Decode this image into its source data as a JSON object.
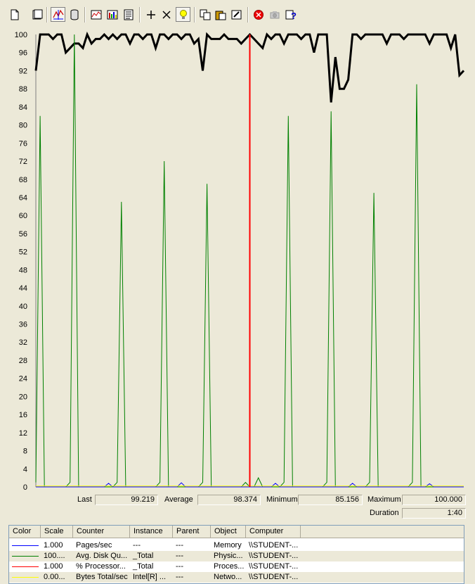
{
  "toolbar": {
    "buttons": [
      {
        "name": "new-counter-set-icon"
      },
      {
        "name": "clear-display-icon"
      },
      {
        "name": "view-current-activity-icon"
      },
      {
        "name": "view-log-data-icon"
      },
      {
        "name": "view-graph-icon"
      },
      {
        "name": "view-histogram-icon"
      },
      {
        "name": "view-report-icon"
      },
      {
        "name": "add-icon"
      },
      {
        "name": "delete-icon"
      },
      {
        "name": "highlight-icon"
      },
      {
        "name": "copy-properties-icon"
      },
      {
        "name": "paste-counter-list-icon"
      },
      {
        "name": "properties-icon"
      },
      {
        "name": "freeze-display-icon"
      },
      {
        "name": "update-data-icon"
      },
      {
        "name": "help-icon"
      }
    ]
  },
  "chart_data": {
    "type": "line",
    "ylim": [
      0,
      100
    ],
    "yticks": [
      "100",
      "96",
      "92",
      "88",
      "84",
      "80",
      "76",
      "72",
      "68",
      "64",
      "60",
      "56",
      "52",
      "48",
      "44",
      "40",
      "36",
      "32",
      "28",
      "24",
      "20",
      "16",
      "12",
      "8",
      "4",
      "0"
    ],
    "x": [
      0,
      1,
      2,
      3,
      4,
      5,
      6,
      7,
      8,
      9,
      10,
      11,
      12,
      13,
      14,
      15,
      16,
      17,
      18,
      19,
      20,
      21,
      22,
      23,
      24,
      25,
      26,
      27,
      28,
      29,
      30,
      31,
      32,
      33,
      34,
      35,
      36,
      37,
      38,
      39,
      40,
      41,
      42,
      43,
      44,
      45,
      46,
      47,
      48,
      49,
      50,
      51,
      52,
      53,
      54,
      55,
      56,
      57,
      58,
      59,
      60,
      61,
      62,
      63,
      64,
      65,
      66,
      67,
      68,
      69,
      70,
      71,
      72,
      73,
      74,
      75,
      76,
      77,
      78,
      79,
      80,
      81,
      82,
      83,
      84,
      85,
      86,
      87,
      88,
      89,
      90,
      91,
      92,
      93,
      94,
      95,
      96,
      97,
      98,
      99,
      100
    ],
    "current_x": 50,
    "series": [
      {
        "color": "#000000",
        "width": 3,
        "values": [
          92,
          100,
          100,
          100,
          99,
          100,
          100,
          96,
          97,
          98,
          98,
          97,
          100,
          98,
          99,
          99,
          100,
          99,
          100,
          99,
          100,
          100,
          98,
          100,
          100,
          99,
          100,
          100,
          97,
          100,
          100,
          99,
          100,
          100,
          99,
          100,
          100,
          98,
          99,
          92,
          100,
          99,
          99,
          99,
          100,
          99,
          99,
          99,
          98,
          99,
          100,
          99,
          98,
          97,
          100,
          99,
          100,
          100,
          98,
          100,
          100,
          100,
          99,
          100,
          100,
          96,
          100,
          100,
          100,
          85,
          95,
          88,
          88,
          90,
          100,
          100,
          99,
          100,
          100,
          100,
          100,
          100,
          98,
          100,
          100,
          100,
          99,
          100,
          100,
          100,
          100,
          100,
          98,
          100,
          100,
          100,
          100,
          97,
          100,
          91,
          92
        ]
      },
      {
        "color": "#008000",
        "width": 1,
        "values": [
          1,
          82,
          0,
          0,
          0,
          0,
          0,
          0,
          1,
          100,
          0,
          0,
          0,
          0,
          0,
          0,
          0,
          0,
          0,
          1,
          63,
          0,
          0,
          0,
          0,
          0,
          0,
          0,
          0,
          1,
          72,
          0,
          0,
          0,
          0,
          0,
          0,
          0,
          0,
          1,
          67,
          0,
          0,
          0,
          0,
          0,
          0,
          0,
          0,
          1,
          0,
          0,
          2,
          0,
          0,
          0,
          0,
          0,
          1,
          82,
          0,
          0,
          0,
          0,
          0,
          0,
          0,
          0,
          1,
          83,
          0,
          0,
          0,
          0,
          0,
          0,
          0,
          0,
          1,
          65,
          0,
          0,
          0,
          0,
          0,
          0,
          0,
          0,
          1,
          89,
          0,
          0,
          0,
          0,
          0,
          0,
          0,
          0,
          0,
          0,
          0
        ]
      },
      {
        "color": "#0000ff",
        "width": 1,
        "values": [
          0,
          0,
          0,
          0,
          0,
          0,
          0,
          0,
          0,
          0,
          0,
          0,
          0,
          0,
          0,
          0,
          0,
          0.8,
          0,
          0,
          0,
          0,
          0,
          0,
          0,
          0,
          0,
          0,
          0,
          0,
          0,
          0,
          0,
          0,
          0.9,
          0,
          0,
          0,
          0,
          0,
          0,
          0,
          0,
          0,
          0,
          0,
          0,
          0,
          0,
          0,
          0,
          0,
          0,
          0,
          0,
          0,
          0.8,
          0,
          0,
          0,
          0,
          0,
          0,
          0,
          0,
          0,
          0,
          0,
          0,
          0,
          0,
          0,
          0,
          0,
          0.8,
          0,
          0,
          0,
          0,
          0,
          0,
          0,
          0,
          0,
          0,
          0,
          0,
          0,
          0,
          0,
          0,
          0,
          0.7,
          0,
          0,
          0,
          0,
          0,
          0,
          0,
          0
        ]
      },
      {
        "color": "#ffff00",
        "width": 1,
        "values": [
          0.2,
          0.2,
          0.2,
          0.2,
          0.2,
          0.2,
          0.2,
          0.2,
          0.2,
          0.2,
          0.2,
          0.2,
          0.2,
          0.2,
          0.2,
          0.2,
          0.2,
          0.2,
          0.2,
          0.2,
          0.2,
          0.2,
          0.2,
          0.2,
          0.2,
          0.2,
          0.2,
          0.2,
          0.2,
          0.2,
          0.2,
          0.2,
          0.2,
          0.2,
          0.2,
          0.2,
          0.2,
          0.2,
          0.2,
          0.2,
          0.2,
          0.2,
          0.2,
          0.2,
          0.2,
          0.2,
          0.2,
          0.2,
          0.2,
          0.2,
          0.2,
          0.2,
          0.2,
          0.2,
          0.2,
          0.2,
          0.2,
          0.2,
          0.2,
          0.2,
          0.2,
          0.2,
          0.2,
          0.2,
          0.2,
          0.2,
          0.2,
          0.2,
          0.2,
          0.2,
          0.2,
          0.2,
          0.2,
          0.2,
          0.2,
          0.2,
          0.2,
          0.2,
          0.2,
          0.2,
          0.2,
          0.2,
          0.2,
          0.2,
          0.2,
          0.2,
          0.2,
          0.2,
          0.2,
          0.2,
          0.2,
          0.2,
          0.2,
          0.2,
          0.2,
          0.2,
          0.2,
          0.2,
          0.2,
          0.2,
          0.2
        ]
      }
    ],
    "colors": {
      "background": "#ece9d8",
      "cursor": "#ff0000",
      "axis": "#808080"
    }
  },
  "stats": {
    "last_label": "Last",
    "last_value": "99.219",
    "average_label": "Average",
    "average_value": "98.374",
    "minimum_label": "Minimum",
    "minimum_value": "85.156",
    "maximum_label": "Maximum",
    "maximum_value": "100.000",
    "duration_label": "Duration",
    "duration_value": "1:40"
  },
  "legend": {
    "headers": [
      "Color",
      "Scale",
      "Counter",
      "Instance",
      "Parent",
      "Object",
      "Computer"
    ],
    "rows": [
      {
        "color": "#0000ff",
        "scale": "1.000",
        "counter": "Pages/sec",
        "instance": "---",
        "parent": "---",
        "object": "Memory",
        "computer": "\\\\STUDENT-..."
      },
      {
        "color": "#008000",
        "scale": "100....",
        "counter": "Avg. Disk Qu...",
        "instance": "_Total",
        "parent": "---",
        "object": "Physic...",
        "computer": "\\\\STUDENT-..."
      },
      {
        "color": "#ff0000",
        "scale": "1.000",
        "counter": "% Processor...",
        "instance": "_Total",
        "parent": "---",
        "object": "Proces...",
        "computer": "\\\\STUDENT-..."
      },
      {
        "color": "#ffff00",
        "scale": "0.00...",
        "counter": "Bytes Total/sec",
        "instance": "Intel[R] ...",
        "parent": "---",
        "object": "Netwo...",
        "computer": "\\\\STUDENT-..."
      }
    ]
  }
}
